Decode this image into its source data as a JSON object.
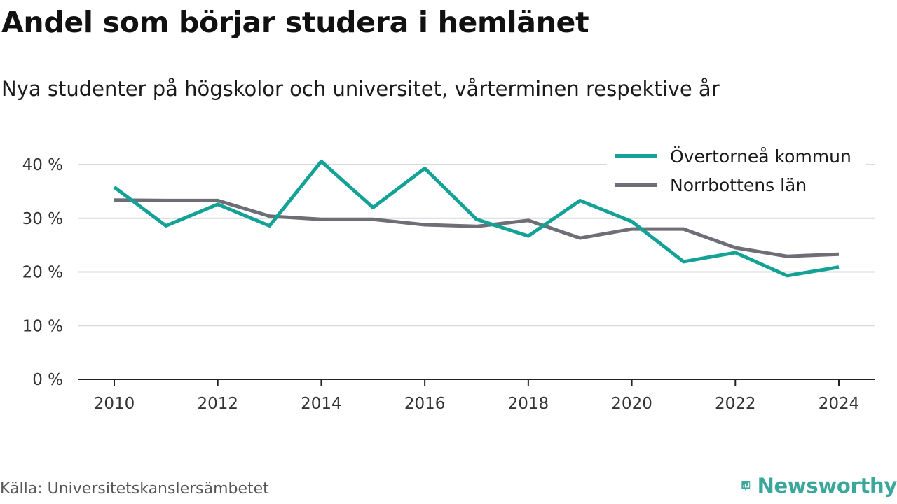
{
  "title": "Andel som börjar studera i hemlänet",
  "subtitle": "Nya studenter på högskolor och universitet, vårterminen respektive år",
  "source": "Källa: Universitetskanslersämbetet",
  "brand": {
    "name": "Newsworthy",
    "icon": "newsworthy-logo-icon",
    "color": "#3aa79a"
  },
  "chart_data": {
    "type": "line",
    "x": [
      2010,
      2011,
      2012,
      2013,
      2014,
      2015,
      2016,
      2017,
      2018,
      2019,
      2020,
      2021,
      2022,
      2023,
      2024
    ],
    "series": [
      {
        "name": "Övertorneå kommun",
        "color": "#14a196",
        "values": [
          35.8,
          28.6,
          32.6,
          28.6,
          40.6,
          32.0,
          39.3,
          29.8,
          26.7,
          33.3,
          29.4,
          21.9,
          23.6,
          19.3,
          20.9
        ]
      },
      {
        "name": "Norrbottens län",
        "color": "#6e6e76",
        "values": [
          33.4,
          33.3,
          33.3,
          30.4,
          29.8,
          29.8,
          28.8,
          28.5,
          29.6,
          26.3,
          28.0,
          28.0,
          24.5,
          22.9,
          23.3
        ]
      }
    ],
    "ylim": [
      0,
      40
    ],
    "xlim": [
      2010,
      2024
    ],
    "y_ticks": [
      0,
      10,
      20,
      30,
      40
    ],
    "y_tick_labels": [
      "0 %",
      "10 %",
      "20 %",
      "30 %",
      "40 %"
    ],
    "x_ticks": [
      2010,
      2012,
      2014,
      2016,
      2018,
      2020,
      2022,
      2024
    ],
    "x_tick_labels": [
      "2010",
      "2012",
      "2014",
      "2016",
      "2018",
      "2020",
      "2022",
      "2024"
    ],
    "grid": "horizontal",
    "legend_position": "top-right"
  }
}
